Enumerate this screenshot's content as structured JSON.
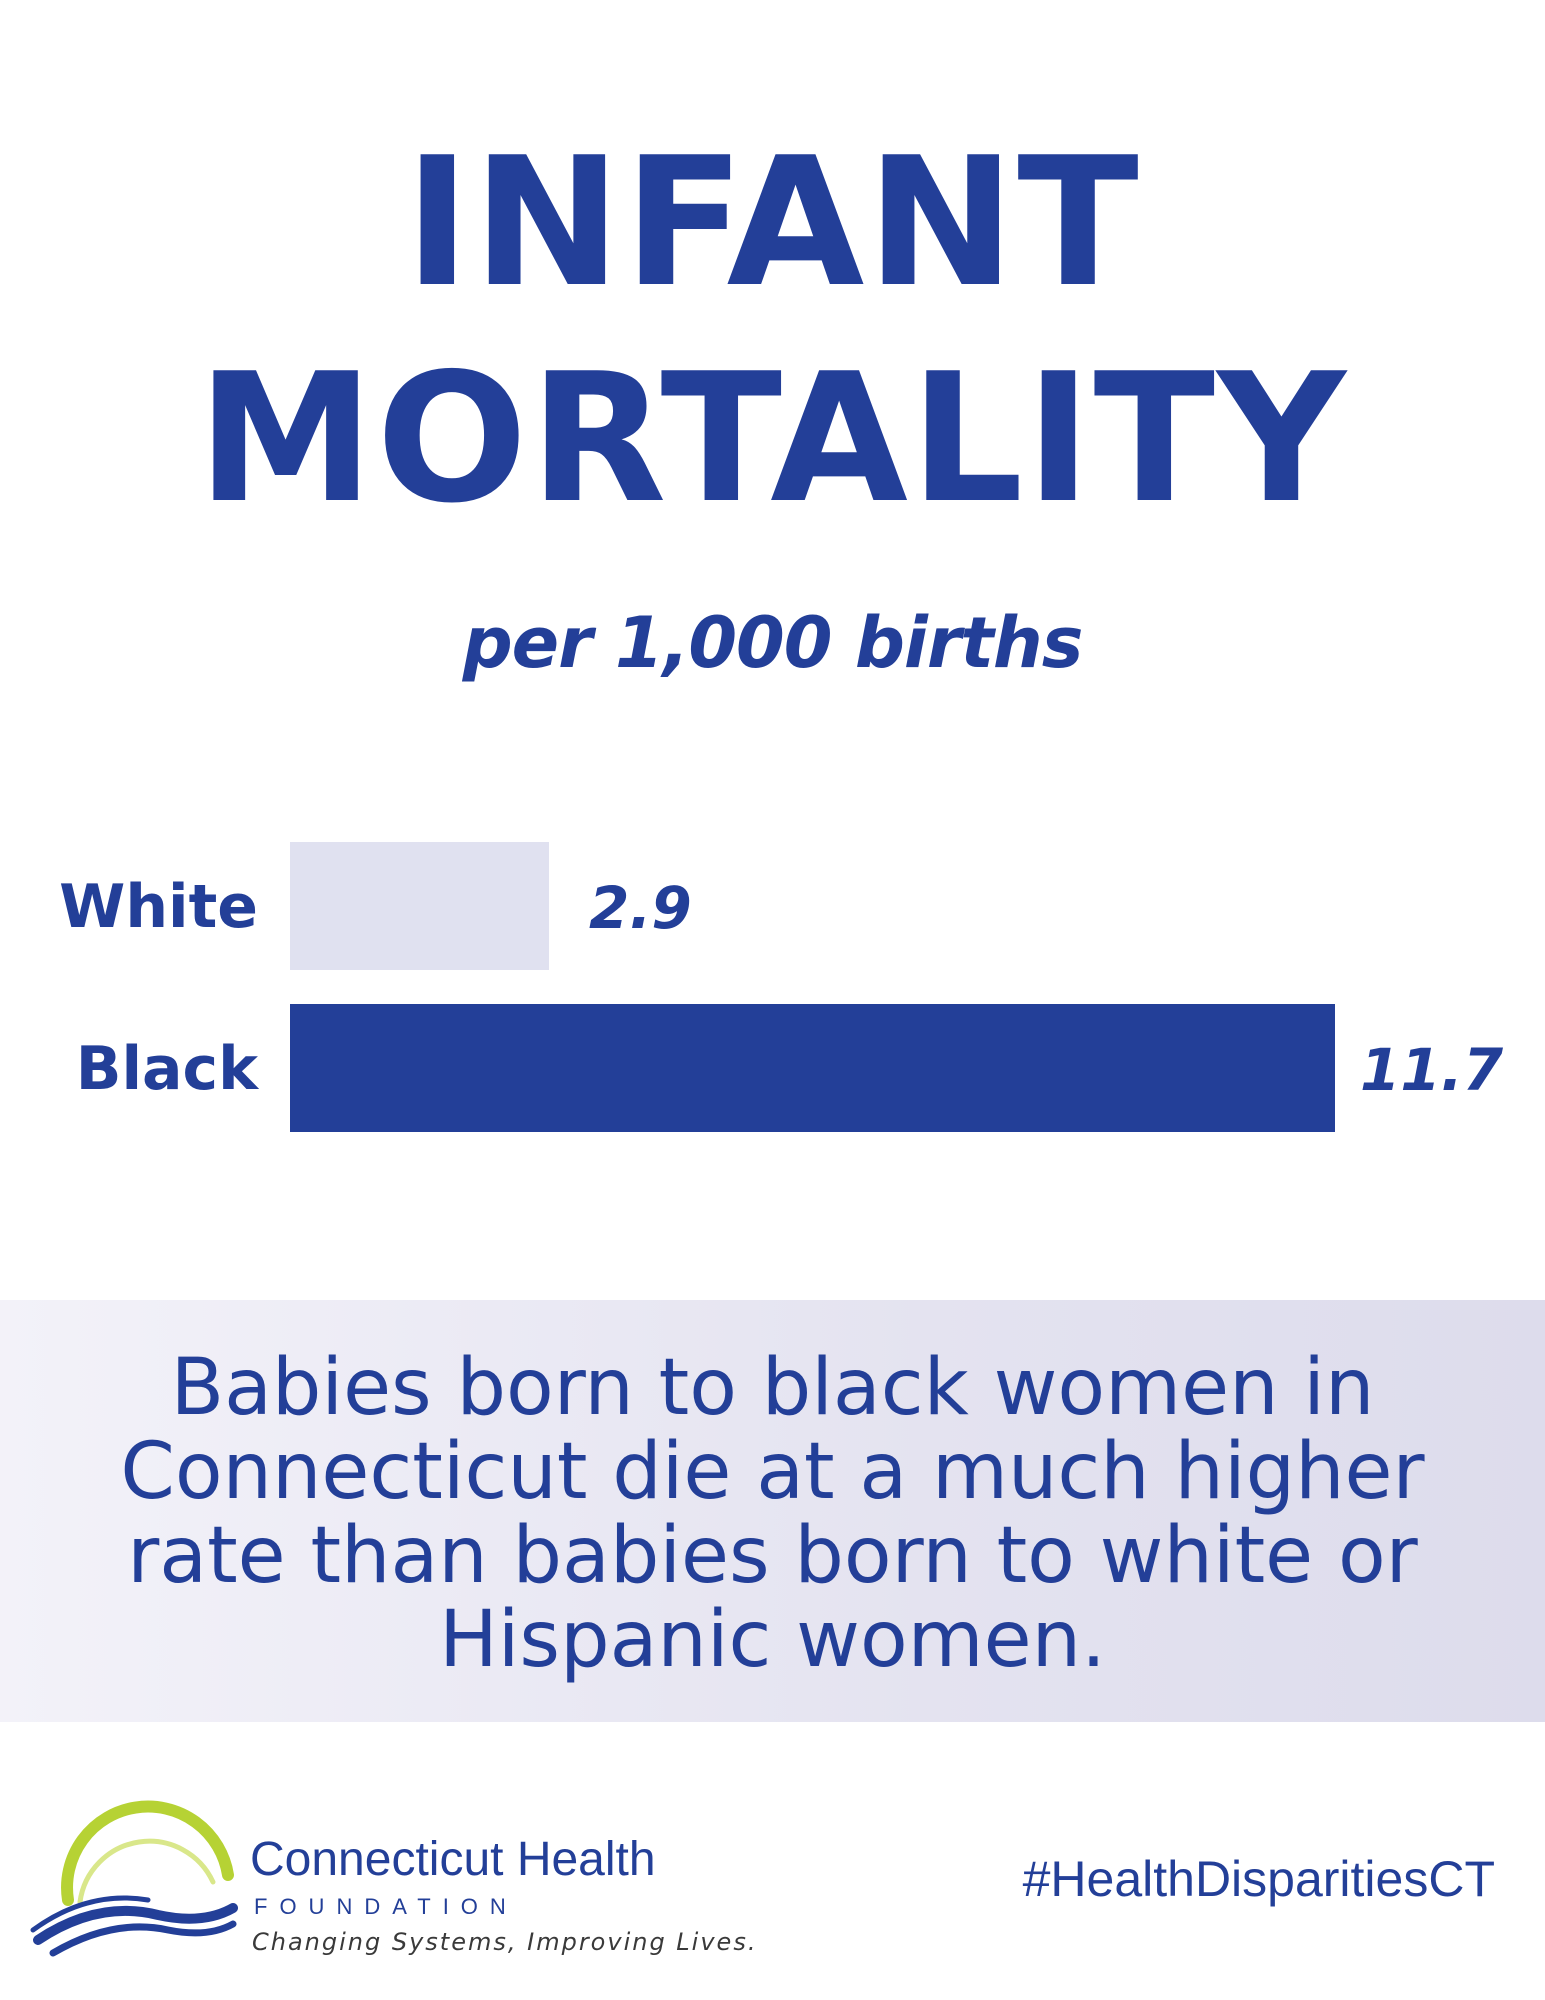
{
  "header": {
    "title_line1": "INFANT",
    "title_line2": "MORTALITY",
    "subtitle": "per 1,000 births"
  },
  "chart_data": {
    "type": "bar",
    "orientation": "horizontal",
    "title": "INFANT MORTALITY",
    "subtitle": "per 1,000 births",
    "categories": [
      "White",
      "Black"
    ],
    "values": [
      2.9,
      11.7
    ],
    "value_labels": [
      "2.9",
      "11.7"
    ],
    "colors": [
      "#e0e1f0",
      "#233f98"
    ],
    "xlim": [
      0,
      11.7
    ],
    "grid": false
  },
  "callout": {
    "text": "Babies born to black women in Connecticut die at a much higher rate than babies born to white or Hispanic women."
  },
  "footer": {
    "org_name": "Connecticut Health",
    "org_sub": "FOUNDATION",
    "tagline": "Changing Systems, Improving Lives.",
    "hashtag": "#HealthDisparitiesCT"
  },
  "colors": {
    "primary": "#233f98",
    "light_bar": "#e0e1f0",
    "logo_green": "#b6d234"
  }
}
